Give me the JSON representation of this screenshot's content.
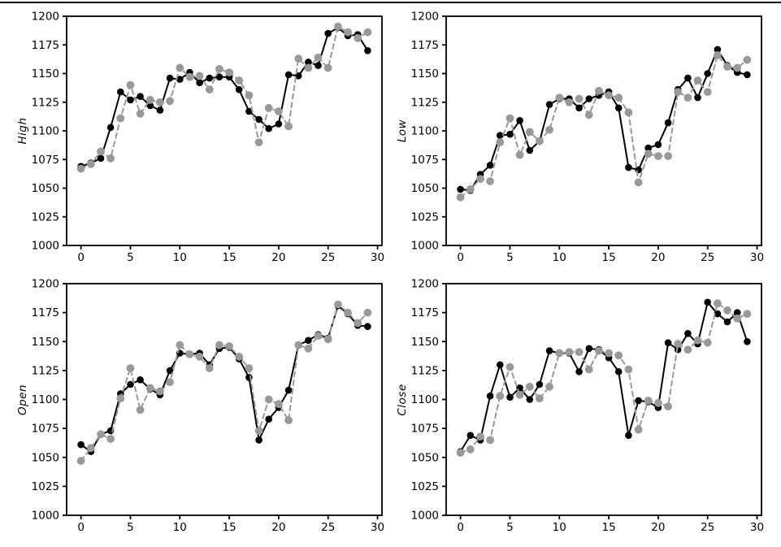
{
  "page": {
    "background_color": "#ffffff",
    "top_border_color": "#000000"
  },
  "chart_data": [
    {
      "id": "high",
      "type": "line",
      "title": "",
      "xlabel": "",
      "ylabel": "High",
      "xlim": [
        -1.45,
        30.45
      ],
      "ylim": [
        1000,
        1200
      ],
      "xticks": [
        0,
        5,
        10,
        15,
        20,
        25,
        30
      ],
      "yticks": [
        1000,
        1025,
        1050,
        1075,
        1100,
        1125,
        1150,
        1175,
        1200
      ],
      "grid": false,
      "legend": "none",
      "x": [
        0,
        1,
        2,
        3,
        4,
        5,
        6,
        7,
        8,
        9,
        10,
        11,
        12,
        13,
        14,
        15,
        16,
        17,
        18,
        19,
        20,
        21,
        22,
        23,
        24,
        25,
        26,
        27,
        28,
        29
      ],
      "series": [
        {
          "name": "solid-black",
          "color": "#000000",
          "line_style": "solid",
          "marker": "circle",
          "values": [
            1069,
            1072,
            1076,
            1103,
            1134,
            1127,
            1130,
            1122,
            1118,
            1146,
            1145,
            1151,
            1142,
            1146,
            1147,
            1147,
            1136,
            1117,
            1110,
            1102,
            1106,
            1149,
            1148,
            1160,
            1157,
            1185,
            1190,
            1183,
            1184,
            1170
          ]
        },
        {
          "name": "dashed-gray",
          "color": "#999999",
          "line_style": "dashed",
          "marker": "circle",
          "values": [
            1067,
            1071,
            1082,
            1076,
            1111,
            1140,
            1115,
            1127,
            1125,
            1126,
            1155,
            1147,
            1148,
            1136,
            1154,
            1151,
            1144,
            1131,
            1090,
            1120,
            1117,
            1104,
            1163,
            1155,
            1164,
            1155,
            1191,
            1186,
            1181,
            1186
          ]
        }
      ]
    },
    {
      "id": "low",
      "type": "line",
      "title": "",
      "xlabel": "",
      "ylabel": "Low",
      "xlim": [
        -1.45,
        30.45
      ],
      "ylim": [
        1000,
        1200
      ],
      "xticks": [
        0,
        5,
        10,
        15,
        20,
        25,
        30
      ],
      "yticks": [
        1000,
        1025,
        1050,
        1075,
        1100,
        1125,
        1150,
        1175,
        1200
      ],
      "grid": false,
      "legend": "none",
      "x": [
        0,
        1,
        2,
        3,
        4,
        5,
        6,
        7,
        8,
        9,
        10,
        11,
        12,
        13,
        14,
        15,
        16,
        17,
        18,
        19,
        20,
        21,
        22,
        23,
        24,
        25,
        26,
        27,
        28,
        29
      ],
      "series": [
        {
          "name": "solid-black",
          "color": "#000000",
          "line_style": "solid",
          "marker": "circle",
          "values": [
            1049,
            1048,
            1062,
            1070,
            1096,
            1097,
            1109,
            1083,
            1091,
            1123,
            1128,
            1128,
            1120,
            1128,
            1131,
            1134,
            1120,
            1068,
            1066,
            1085,
            1088,
            1107,
            1136,
            1146,
            1129,
            1150,
            1171,
            1157,
            1151,
            1149
          ]
        },
        {
          "name": "dashed-gray",
          "color": "#999999",
          "line_style": "dashed",
          "marker": "circle",
          "values": [
            1042,
            1049,
            1058,
            1056,
            1090,
            1111,
            1079,
            1099,
            1091,
            1101,
            1129,
            1125,
            1128,
            1114,
            1135,
            1131,
            1129,
            1116,
            1055,
            1080,
            1078,
            1078,
            1134,
            1129,
            1144,
            1134,
            1166,
            1156,
            1155,
            1162
          ]
        }
      ]
    },
    {
      "id": "open",
      "type": "line",
      "title": "",
      "xlabel": "",
      "ylabel": "Open",
      "xlim": [
        -1.45,
        30.45
      ],
      "ylim": [
        1000,
        1200
      ],
      "xticks": [
        0,
        5,
        10,
        15,
        20,
        25,
        30
      ],
      "yticks": [
        1000,
        1025,
        1050,
        1075,
        1100,
        1125,
        1150,
        1175,
        1200
      ],
      "grid": false,
      "legend": "none",
      "x": [
        0,
        1,
        2,
        3,
        4,
        5,
        6,
        7,
        8,
        9,
        10,
        11,
        12,
        13,
        14,
        15,
        16,
        17,
        18,
        19,
        20,
        21,
        22,
        23,
        24,
        25,
        26,
        27,
        28,
        29
      ],
      "series": [
        {
          "name": "solid-black",
          "color": "#000000",
          "line_style": "solid",
          "marker": "circle",
          "values": [
            1061,
            1055,
            1070,
            1073,
            1105,
            1113,
            1117,
            1109,
            1104,
            1125,
            1140,
            1139,
            1140,
            1130,
            1144,
            1145,
            1135,
            1119,
            1065,
            1083,
            1093,
            1108,
            1147,
            1151,
            1156,
            1153,
            1181,
            1174,
            1164,
            1163
          ]
        },
        {
          "name": "dashed-gray",
          "color": "#999999",
          "line_style": "dashed",
          "marker": "circle",
          "values": [
            1047,
            1058,
            1070,
            1066,
            1101,
            1127,
            1091,
            1110,
            1107,
            1115,
            1147,
            1139,
            1137,
            1127,
            1147,
            1146,
            1137,
            1127,
            1073,
            1100,
            1096,
            1082,
            1147,
            1144,
            1155,
            1152,
            1182,
            1175,
            1166,
            1175
          ]
        }
      ]
    },
    {
      "id": "close",
      "type": "line",
      "title": "",
      "xlabel": "",
      "ylabel": "Close",
      "xlim": [
        -1.45,
        30.45
      ],
      "ylim": [
        1000,
        1200
      ],
      "xticks": [
        0,
        5,
        10,
        15,
        20,
        25,
        30
      ],
      "yticks": [
        1000,
        1025,
        1050,
        1075,
        1100,
        1125,
        1150,
        1175,
        1200
      ],
      "grid": false,
      "legend": "none",
      "x": [
        0,
        1,
        2,
        3,
        4,
        5,
        6,
        7,
        8,
        9,
        10,
        11,
        12,
        13,
        14,
        15,
        16,
        17,
        18,
        19,
        20,
        21,
        22,
        23,
        24,
        25,
        26,
        27,
        28,
        29
      ],
      "series": [
        {
          "name": "solid-black",
          "color": "#000000",
          "line_style": "solid",
          "marker": "circle",
          "values": [
            1055,
            1069,
            1065,
            1103,
            1130,
            1102,
            1110,
            1100,
            1113,
            1142,
            1140,
            1140,
            1124,
            1144,
            1143,
            1136,
            1124,
            1069,
            1099,
            1098,
            1093,
            1149,
            1143,
            1157,
            1148,
            1184,
            1174,
            1167,
            1175,
            1150
          ]
        },
        {
          "name": "dashed-gray",
          "color": "#999999",
          "line_style": "dashed",
          "marker": "circle",
          "values": [
            1054,
            1057,
            1068,
            1065,
            1103,
            1128,
            1104,
            1111,
            1101,
            1111,
            1140,
            1141,
            1141,
            1126,
            1142,
            1140,
            1138,
            1126,
            1074,
            1099,
            1097,
            1094,
            1148,
            1143,
            1151,
            1149,
            1183,
            1177,
            1170,
            1174
          ]
        }
      ]
    }
  ]
}
